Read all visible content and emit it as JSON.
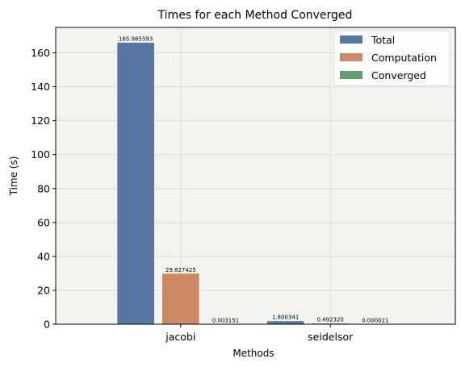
{
  "chart_data": {
    "type": "bar",
    "title": "Times for each Method Converged",
    "xlabel": "Methods",
    "ylabel": "Time (s)",
    "ylim": [
      0,
      175
    ],
    "yticks": [
      0,
      20,
      40,
      60,
      80,
      100,
      120,
      140,
      160
    ],
    "grid": true,
    "legend_position": "top-right",
    "categories": [
      "jacobi",
      "seidelsor"
    ],
    "series": [
      {
        "name": "Total",
        "color": "#5875a4",
        "values": [
          165.985593,
          1.800341
        ],
        "labels": [
          "165.985593",
          "1.800341"
        ]
      },
      {
        "name": "Computation",
        "color": "#cc8963",
        "values": [
          29.827425,
          0.49232
        ],
        "labels": [
          "29.827425",
          "0.492320"
        ]
      },
      {
        "name": "Converged",
        "color": "#5f9e6e",
        "values": [
          0.003151,
          2.1e-05
        ],
        "labels": [
          "0.003151",
          "0.000021"
        ]
      }
    ]
  }
}
